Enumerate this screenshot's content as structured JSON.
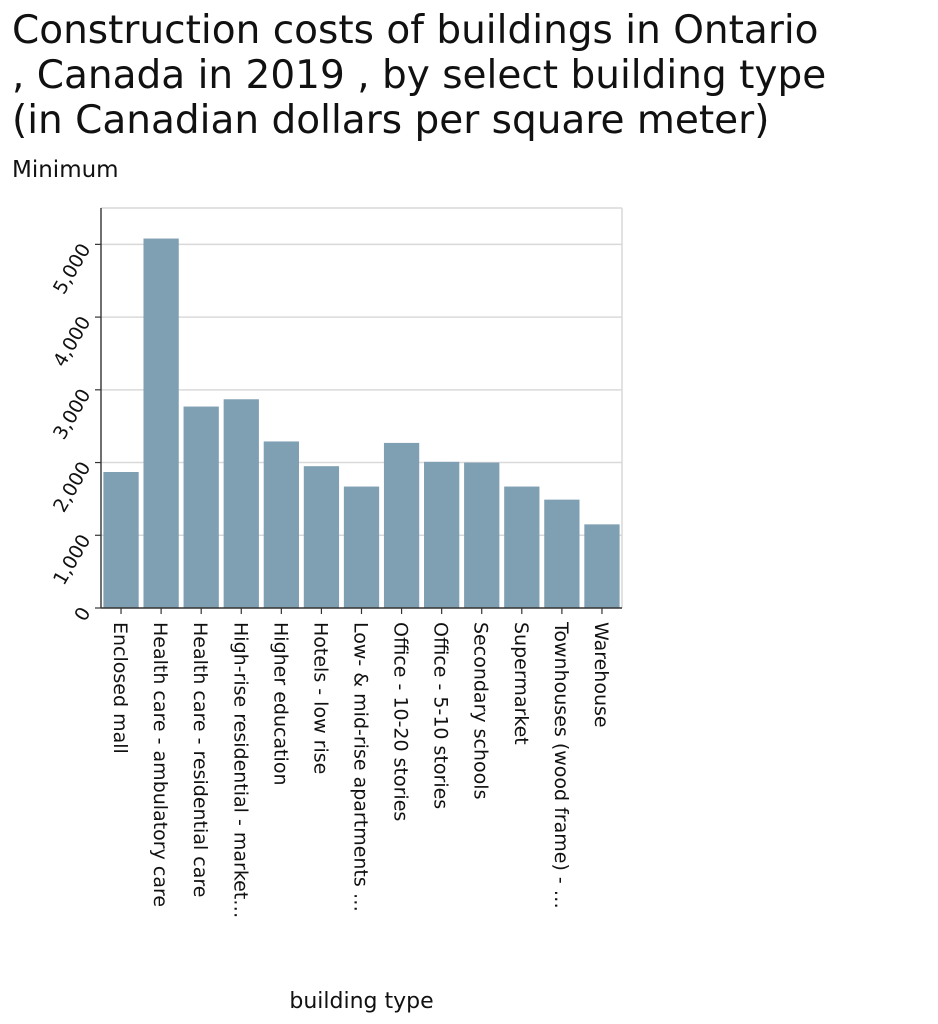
{
  "header": {
    "title_lines": [
      "Construction costs of buildings in Ontario",
      ", Canada in 2019 , by select building type",
      "(in Canadian dollars per square meter)"
    ],
    "subtitle": "Minimum"
  },
  "chart_data": {
    "type": "bar",
    "title": "Construction costs of buildings in Ontario , Canada in 2019 , by select building type (in Canadian dollars per square meter)",
    "subtitle": "Minimum",
    "xlabel": "building type",
    "ylabel": "",
    "ylim": [
      0,
      5500
    ],
    "yticks": [
      0,
      1000,
      2000,
      3000,
      4000,
      5000
    ],
    "ytick_labels": [
      "0",
      "1,000",
      "2,000",
      "3,000",
      "4,000",
      "5,000"
    ],
    "grid": true,
    "bar_color": "#7f9fb3",
    "categories": [
      "Enclosed mall",
      "Health care - ambulatory care",
      "Health care - residential care",
      "High-rise residential - market…",
      "Higher education",
      "Hotels - low rise",
      "Low- & mid-rise apartments …",
      "Office - 10-20 stories",
      "Office - 5-10 stories",
      "Secondary schools",
      "Supermarket",
      "Townhouses (wood frame) - …",
      "Warehouse"
    ],
    "values": [
      1870,
      5080,
      2770,
      2870,
      2290,
      1950,
      1670,
      2270,
      2010,
      2000,
      1670,
      1490,
      1150
    ]
  }
}
